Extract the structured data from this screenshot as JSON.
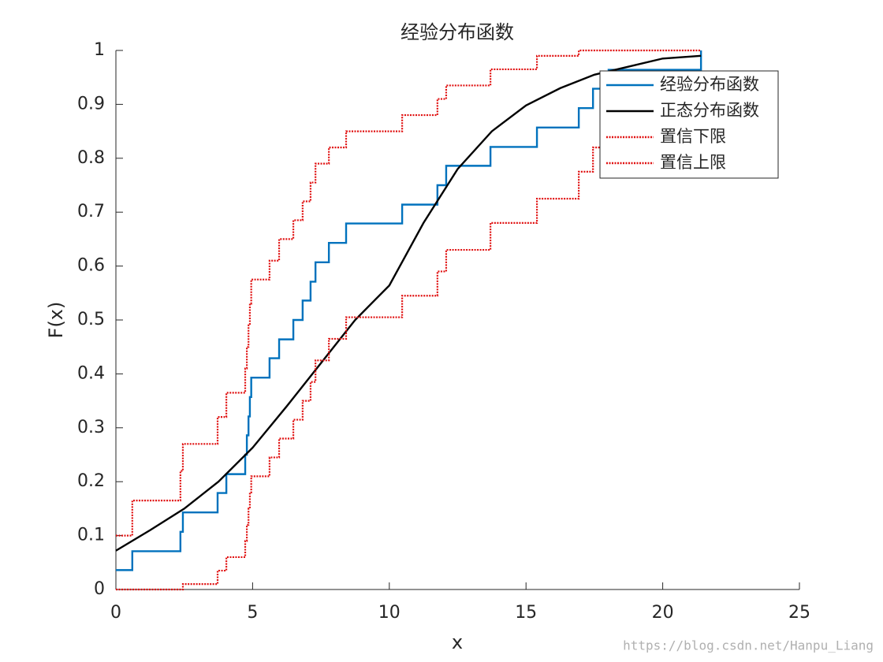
{
  "chart_data": {
    "type": "line",
    "title": "经验分布函数",
    "x_label": "x",
    "y_label": "F(x)",
    "watermark": "https://blog.csdn.net/Hanpu_Liang",
    "xlim": [
      0,
      25
    ],
    "xticks": [
      0,
      5,
      10,
      15,
      20,
      25
    ],
    "ylim": [
      0,
      1
    ],
    "yticks": [
      0,
      0.1,
      0.2,
      0.3,
      0.4,
      0.5,
      0.6,
      0.7,
      0.8,
      0.9,
      1
    ],
    "legend": "top-right",
    "series": [
      {
        "name": "经验分布函数",
        "color": "#0072bd",
        "style": "solid",
        "step": true,
        "x": [
          0,
          0.6,
          2.36,
          2.45,
          3.72,
          4.04,
          4.73,
          4.79,
          4.85,
          4.9,
          4.95,
          5.62,
          5.97,
          6.49,
          6.83,
          7.12,
          7.3,
          7.79,
          8.42,
          10.47,
          11.76,
          12.08,
          13.7,
          15.4,
          16.93,
          17.45,
          18.02,
          21.4
        ],
        "values": [
          0.036,
          0.071,
          0.107,
          0.143,
          0.179,
          0.214,
          0.25,
          0.286,
          0.321,
          0.357,
          0.393,
          0.429,
          0.464,
          0.5,
          0.536,
          0.571,
          0.607,
          0.643,
          0.679,
          0.714,
          0.75,
          0.786,
          0.821,
          0.857,
          0.893,
          0.929,
          0.964,
          1.0
        ]
      },
      {
        "name": "正态分布函数",
        "color": "#000000",
        "style": "solid",
        "step": false,
        "x": [
          0,
          1.25,
          2.5,
          3.75,
          5,
          6.25,
          7.5,
          8.75,
          10,
          11.25,
          12.5,
          13.75,
          15,
          16.25,
          17.5,
          18.75,
          20,
          21.4
        ],
        "values": [
          0.072,
          0.11,
          0.15,
          0.2,
          0.263,
          0.34,
          0.42,
          0.5,
          0.564,
          0.68,
          0.78,
          0.85,
          0.898,
          0.93,
          0.955,
          0.97,
          0.985,
          0.99
        ]
      },
      {
        "name": "置信下限",
        "color": "#e01010",
        "style": "dotted",
        "step": true,
        "x": [
          0,
          0.6,
          2.36,
          2.45,
          3.72,
          4.04,
          4.73,
          4.79,
          4.85,
          4.9,
          4.95,
          5.62,
          5.97,
          6.49,
          6.83,
          7.12,
          7.3,
          7.79,
          8.42,
          10.47,
          11.76,
          12.08,
          13.7,
          15.4,
          16.93,
          17.45,
          18.02,
          21.4
        ],
        "values": [
          0,
          0,
          0,
          0.01,
          0.035,
          0.06,
          0.09,
          0.12,
          0.15,
          0.18,
          0.21,
          0.245,
          0.28,
          0.315,
          0.35,
          0.385,
          0.425,
          0.465,
          0.505,
          0.545,
          0.59,
          0.63,
          0.68,
          0.725,
          0.775,
          0.82,
          0.87,
          0.87
        ]
      },
      {
        "name": "置信上限",
        "color": "#e01010",
        "style": "dotted",
        "step": true,
        "x": [
          0,
          0.6,
          2.36,
          2.45,
          3.72,
          4.04,
          4.73,
          4.79,
          4.85,
          4.9,
          4.95,
          5.62,
          5.97,
          6.49,
          6.83,
          7.12,
          7.3,
          7.79,
          8.42,
          10.47,
          11.76,
          12.08,
          13.7,
          15.4,
          16.93,
          17.45,
          18.02,
          21.4
        ],
        "values": [
          0.1,
          0.165,
          0.22,
          0.27,
          0.32,
          0.365,
          0.41,
          0.45,
          0.49,
          0.53,
          0.575,
          0.61,
          0.65,
          0.685,
          0.72,
          0.755,
          0.79,
          0.82,
          0.85,
          0.88,
          0.91,
          0.935,
          0.965,
          0.99,
          1.0,
          1.0,
          1.0,
          1.0
        ]
      }
    ]
  }
}
